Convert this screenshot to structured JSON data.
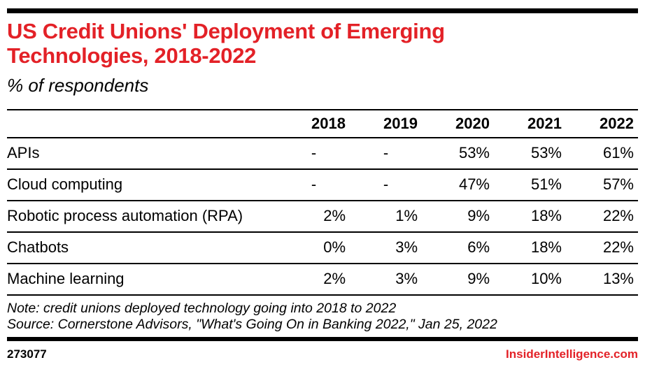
{
  "colors": {
    "accent_red": "#e32127",
    "text_black": "#000000",
    "background": "#ffffff"
  },
  "header": {
    "title": "US Credit Unions' Deployment of Emerging Technologies, 2018-2022",
    "subtitle": "% of respondents"
  },
  "table": {
    "columns": [
      "2018",
      "2019",
      "2020",
      "2021",
      "2022"
    ],
    "rows": [
      {
        "label": "APIs",
        "values": [
          "-",
          "-",
          "53%",
          "53%",
          "61%"
        ]
      },
      {
        "label": "Cloud computing",
        "values": [
          "-",
          "-",
          "47%",
          "51%",
          "57%"
        ]
      },
      {
        "label": "Robotic process automation (RPA)",
        "values": [
          "2%",
          "1%",
          "9%",
          "18%",
          "22%"
        ]
      },
      {
        "label": "Chatbots",
        "values": [
          "0%",
          "3%",
          "6%",
          "18%",
          "22%"
        ]
      },
      {
        "label": "Machine learning",
        "values": [
          "2%",
          "3%",
          "9%",
          "10%",
          "13%"
        ]
      }
    ]
  },
  "footnotes": {
    "note": "Note: credit unions deployed technology going into 2018 to 2022",
    "source": "Source: Cornerstone Advisors, \"What's Going On in Banking 2022,\" Jan 25, 2022"
  },
  "footer": {
    "chart_id": "273077",
    "brand": "InsiderIntelligence.com"
  },
  "chart_data": {
    "type": "table",
    "title": "US Credit Unions' Deployment of Emerging Technologies, 2018-2022",
    "subtitle": "% of respondents",
    "unit": "percent of respondents",
    "categories": [
      "2018",
      "2019",
      "2020",
      "2021",
      "2022"
    ],
    "series": [
      {
        "name": "APIs",
        "values": [
          null,
          null,
          53,
          53,
          61
        ]
      },
      {
        "name": "Cloud computing",
        "values": [
          null,
          null,
          47,
          51,
          57
        ]
      },
      {
        "name": "Robotic process automation (RPA)",
        "values": [
          2,
          1,
          9,
          18,
          22
        ]
      },
      {
        "name": "Chatbots",
        "values": [
          0,
          3,
          6,
          18,
          22
        ]
      },
      {
        "name": "Machine learning",
        "values": [
          2,
          3,
          9,
          10,
          13
        ]
      }
    ],
    "missing_value_marker": "-",
    "note": "Note: credit unions deployed technology going into 2018 to 2022",
    "source": "Source: Cornerstone Advisors, \"What's Going On in Banking 2022,\" Jan 25, 2022"
  }
}
